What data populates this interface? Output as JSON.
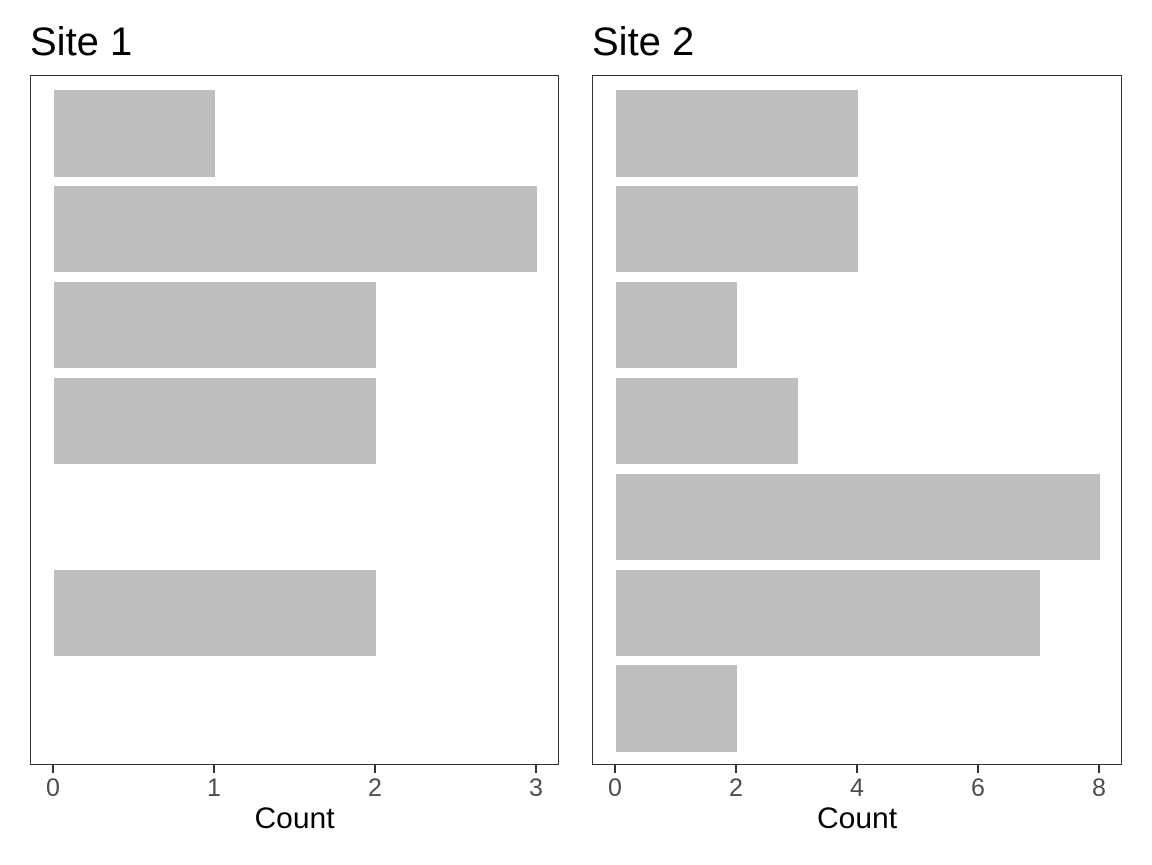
{
  "figure": {
    "background": "#ffffff",
    "description": "Two horizontal bar charts side by side"
  },
  "styles": {
    "bar_color": "#BEBEBE",
    "panel_border_color": "#333333",
    "tick_mark_color": "#333333",
    "tick_label_color": "#4D4D4D",
    "title_color": "#000000",
    "axis_title_color": "#000000"
  },
  "chart_data": [
    {
      "type": "bar",
      "orientation": "horizontal",
      "title": "Site 1",
      "xlabel": "Count",
      "ylabel": "",
      "values_order": "top-to-bottom",
      "values": [
        1,
        3,
        2,
        2,
        0,
        2,
        0
      ],
      "xticks": [
        0,
        1,
        2,
        3
      ],
      "xlim": [
        0,
        3
      ],
      "grid": false,
      "legend": "none",
      "bar_color": "#BEBEBE"
    },
    {
      "type": "bar",
      "orientation": "horizontal",
      "title": "Site 2",
      "xlabel": "Count",
      "ylabel": "",
      "values_order": "top-to-bottom",
      "values": [
        4,
        4,
        2,
        3,
        8,
        7,
        2
      ],
      "xticks": [
        0,
        2,
        4,
        6,
        8
      ],
      "xlim": [
        0,
        8
      ],
      "grid": false,
      "legend": "none",
      "bar_color": "#BEBEBE"
    }
  ]
}
